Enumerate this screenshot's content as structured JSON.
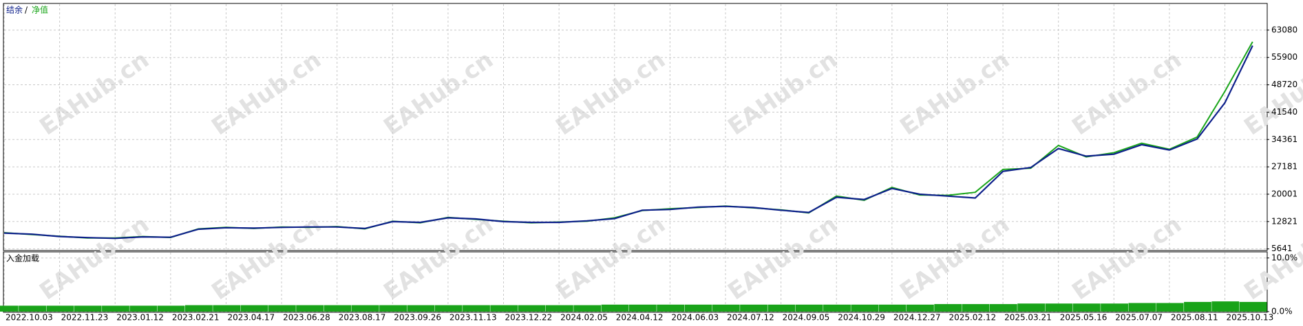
{
  "chart_data": [
    {
      "type": "line",
      "legend_separator": "/",
      "watermark": "EAHub.cn",
      "categories": [
        "2022.10.03",
        null,
        "2022.11.23",
        null,
        "2023.01.12",
        null,
        "2023.02.21",
        null,
        "2023.04.17",
        null,
        "2023.06.28",
        null,
        "2023.08.17",
        null,
        "2023.09.26",
        null,
        "2023.11.13",
        null,
        "2023.12.22",
        null,
        "2024.02.05",
        null,
        "2024.04.12",
        null,
        "2024.06.03",
        null,
        "2024.07.12",
        null,
        "2024.09.05",
        null,
        "2024.10.29",
        null,
        "2024.12.27",
        null,
        "2025.02.12",
        null,
        "2025.03.21",
        null,
        "2025.05.16",
        null,
        "2025.07.07",
        null,
        "2025.08.11",
        null,
        "2025.10.13",
        null
      ],
      "series": [
        {
          "name": "结余",
          "color": "#0c1f8a",
          "values": [
            9800,
            9500,
            8900,
            8600,
            8400,
            8800,
            8700,
            10800,
            11200,
            11100,
            11300,
            11400,
            11400,
            11000,
            12800,
            12600,
            13800,
            13500,
            12800,
            12600,
            12600,
            13000,
            13600,
            15800,
            16000,
            16600,
            16800,
            16500,
            15800,
            15200,
            19200,
            18600,
            21500,
            20000,
            19500,
            19000,
            26000,
            27000,
            32000,
            30000,
            30500,
            33000,
            31600,
            34500,
            44000,
            59000
          ]
        },
        {
          "name": "净值",
          "color": "#1aa51a",
          "values": [
            9900,
            9400,
            8950,
            8500,
            8500,
            8900,
            8650,
            10900,
            11300,
            11000,
            11400,
            11300,
            11500,
            10900,
            12900,
            12500,
            13900,
            13400,
            12900,
            12500,
            12700,
            12900,
            13800,
            15700,
            16200,
            16500,
            16900,
            16400,
            15900,
            15100,
            19500,
            18400,
            21800,
            19800,
            19700,
            20500,
            26500,
            26800,
            32800,
            29800,
            30900,
            33400,
            31800,
            35000,
            47000,
            60000
          ]
        }
      ],
      "ylim": [
        5400,
        69900
      ],
      "yticks": [
        5641,
        12821,
        20001,
        27181,
        34361,
        41540,
        48720,
        55900,
        63080
      ],
      "grid": true
    },
    {
      "type": "bar",
      "title": "入金加载",
      "color": "#19a319",
      "values": [
        1.1,
        1.1,
        1.1,
        1.1,
        1.1,
        1.1,
        1.1,
        1.2,
        1.2,
        1.2,
        1.2,
        1.2,
        1.2,
        1.2,
        1.2,
        1.2,
        1.2,
        1.2,
        1.2,
        1.2,
        1.2,
        1.2,
        1.3,
        1.3,
        1.3,
        1.3,
        1.3,
        1.3,
        1.3,
        1.3,
        1.3,
        1.3,
        1.3,
        1.3,
        1.4,
        1.4,
        1.4,
        1.5,
        1.5,
        1.5,
        1.5,
        1.6,
        1.6,
        1.8,
        1.9,
        1.8
      ],
      "ylim": [
        0,
        11
      ],
      "yticks": [
        {
          "value": 0,
          "label": "0.0%"
        },
        {
          "value": 10,
          "label": "10.0%"
        }
      ],
      "grid": true
    }
  ]
}
